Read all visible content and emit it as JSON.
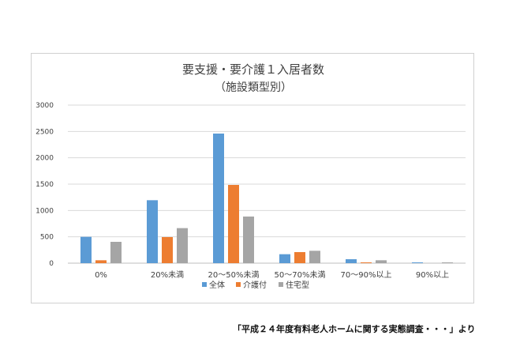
{
  "chart_data": {
    "type": "bar",
    "title": "要支援・要介護１入居者数",
    "subtitle": "（施設類型別）",
    "categories": [
      "0%",
      "20%未満",
      "20～50%未満",
      "50～70%未満",
      "70～90%以上",
      "90%以上"
    ],
    "ylim": [
      0,
      3000
    ],
    "yticks": [
      0,
      500,
      1000,
      1500,
      2000,
      2500,
      3000
    ],
    "grid": true,
    "legend_position": "bottom",
    "series": [
      {
        "name": "全体",
        "color": "#5b9bd5",
        "values": [
          500,
          1195,
          2460,
          170,
          75,
          15
        ]
      },
      {
        "name": "介護付",
        "color": "#ed7d31",
        "values": [
          55,
          495,
          1485,
          210,
          15,
          0
        ]
      },
      {
        "name": "住宅型",
        "color": "#a5a5a5",
        "values": [
          405,
          665,
          885,
          235,
          55,
          15
        ]
      }
    ]
  },
  "source_note": "「平成２４年度有料老人ホームに関する実態調査・・・」より"
}
